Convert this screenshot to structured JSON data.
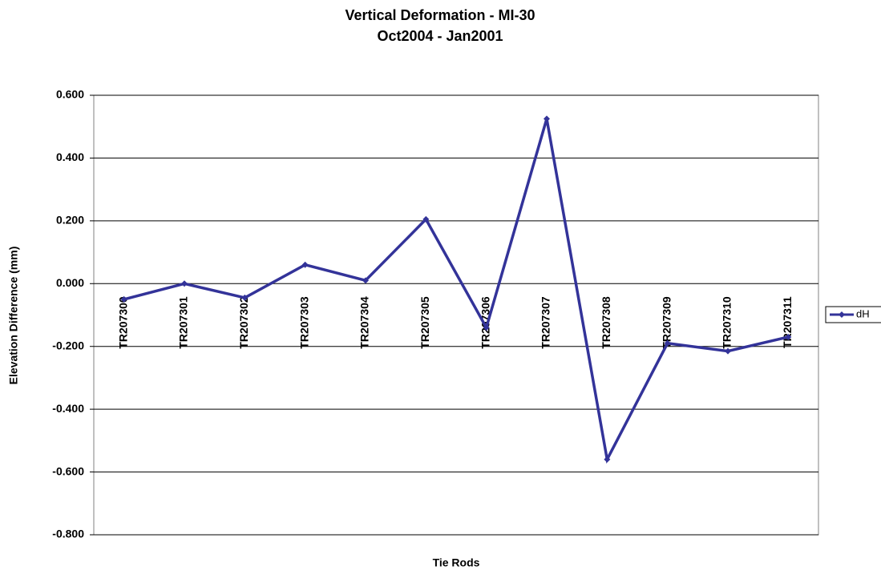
{
  "chart_data": {
    "type": "line",
    "title": "Vertical Deformation - MI-30",
    "subtitle": "Oct2004 - Jan2001",
    "x_label": "Tie Rods",
    "y_label": "Elevation Difference (mm)",
    "categories": [
      "TR207300",
      "TR207301",
      "TR207302",
      "TR207303",
      "TR207304",
      "TR207305",
      "TR207306",
      "TR207307",
      "TR207308",
      "TR207309",
      "TR207310",
      "TR207311"
    ],
    "series": [
      {
        "name": "dH",
        "color": "#333399",
        "values": [
          -0.05,
          0.0,
          -0.045,
          0.06,
          0.01,
          0.205,
          -0.14,
          0.525,
          -0.56,
          -0.19,
          -0.215,
          -0.17
        ]
      }
    ],
    "ylim": [
      -0.8,
      0.6
    ],
    "yticks": [
      {
        "value": -0.8,
        "label": "-0.800"
      },
      {
        "value": -0.6,
        "label": "-0.600"
      },
      {
        "value": -0.4,
        "label": "-0.400"
      },
      {
        "value": -0.2,
        "label": "-0.200"
      },
      {
        "value": 0,
        "label": "0.000"
      },
      {
        "value": 0.2,
        "label": "0.200"
      },
      {
        "value": 0.4,
        "label": "0.400"
      },
      {
        "value": 0.6,
        "label": "0.600"
      }
    ],
    "grid": true,
    "legend": "right"
  }
}
